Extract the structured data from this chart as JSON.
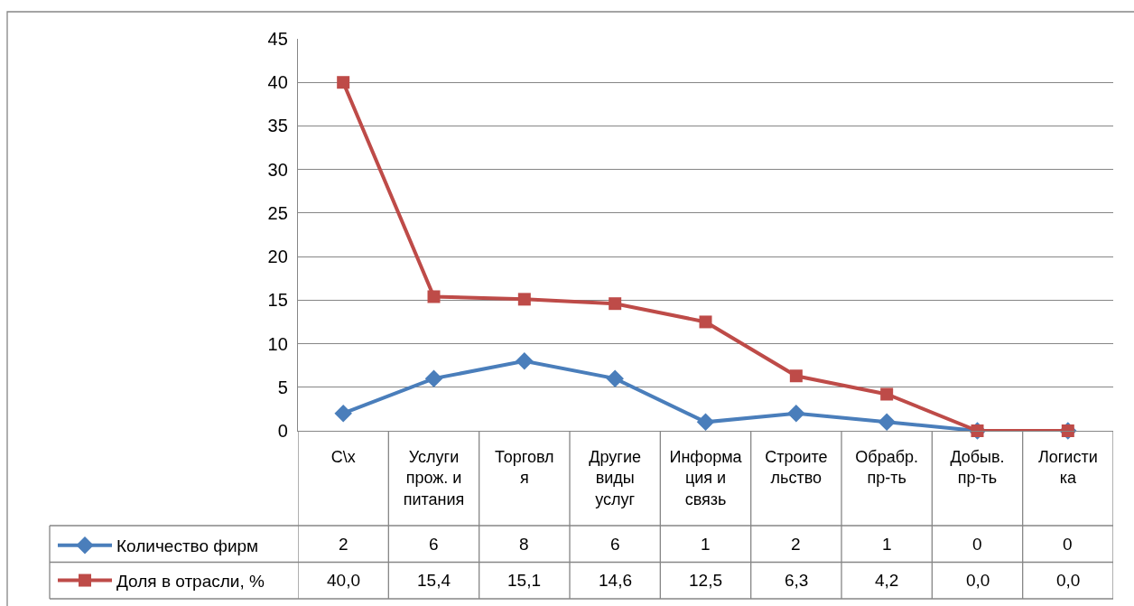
{
  "chart_data": {
    "type": "line",
    "categories": [
      "С\\х",
      "Услуги прож. и питания",
      "Торговля",
      "Другие виды услуг",
      "Информация и связь",
      "Строительство",
      "Обрабр. пр-ть",
      "Добыв. пр-ть",
      "Логистика"
    ],
    "series": [
      {
        "name": "Количество фирм",
        "color": "#4a7ebb",
        "marker": "diamond",
        "values": [
          2,
          6,
          8,
          6,
          1,
          2,
          1,
          0,
          0
        ],
        "value_labels": [
          "2",
          "6",
          "8",
          "6",
          "1",
          "2",
          "1",
          "0",
          "0"
        ]
      },
      {
        "name": "Доля в отрасли, %",
        "color": "#be4b48",
        "marker": "square",
        "values": [
          40.0,
          15.4,
          15.1,
          14.6,
          12.5,
          6.3,
          4.2,
          0.0,
          0.0
        ],
        "value_labels": [
          "40,0",
          "15,4",
          "15,1",
          "14,6",
          "12,5",
          "6,3",
          "4,2",
          "0,0",
          "0,0"
        ]
      }
    ],
    "ylim": [
      0,
      45
    ],
    "yticks": [
      0,
      5,
      10,
      15,
      20,
      25,
      30,
      35,
      40,
      45
    ],
    "grid": "y",
    "legend": "bottom left"
  }
}
